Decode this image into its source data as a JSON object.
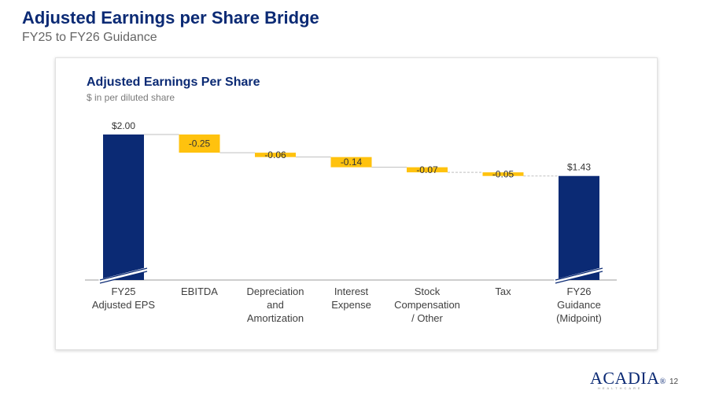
{
  "header": {
    "title": "Adjusted Earnings per Share Bridge",
    "subtitle": "FY25 to FY26 Guidance"
  },
  "chart_data": {
    "type": "bar",
    "subtype": "waterfall",
    "title": "Adjusted Earnings Per Share",
    "subtitle": "$ in per diluted share",
    "categories": [
      [
        "FY25",
        "Adjusted EPS"
      ],
      [
        "EBITDA"
      ],
      [
        "Depreciation",
        "and",
        "Amortization"
      ],
      [
        "Interest",
        "Expense"
      ],
      [
        "Stock",
        "Compensation",
        "/ Other"
      ],
      [
        "Tax"
      ],
      [
        "FY26",
        "Guidance",
        "(Midpoint)"
      ]
    ],
    "values": [
      2.0,
      -0.25,
      -0.06,
      -0.14,
      -0.07,
      -0.05,
      1.43
    ],
    "labels": [
      "$2.00",
      "-0.25",
      "-0.06",
      "-0.14",
      "-0.07",
      "-0.05",
      "$1.43"
    ],
    "bar_types": [
      "total",
      "delta",
      "delta",
      "delta",
      "delta",
      "delta",
      "total"
    ],
    "axis_break": true,
    "colors": {
      "total": "#0b2a74",
      "delta": "#ffc20e",
      "connector": "#bfbfbf",
      "axis": "#9e9e9e"
    }
  },
  "footer": {
    "logo_text": "ACADIA",
    "logo_mark": "®",
    "logo_subtext": "HEALTHCARE",
    "page_number": "12"
  }
}
